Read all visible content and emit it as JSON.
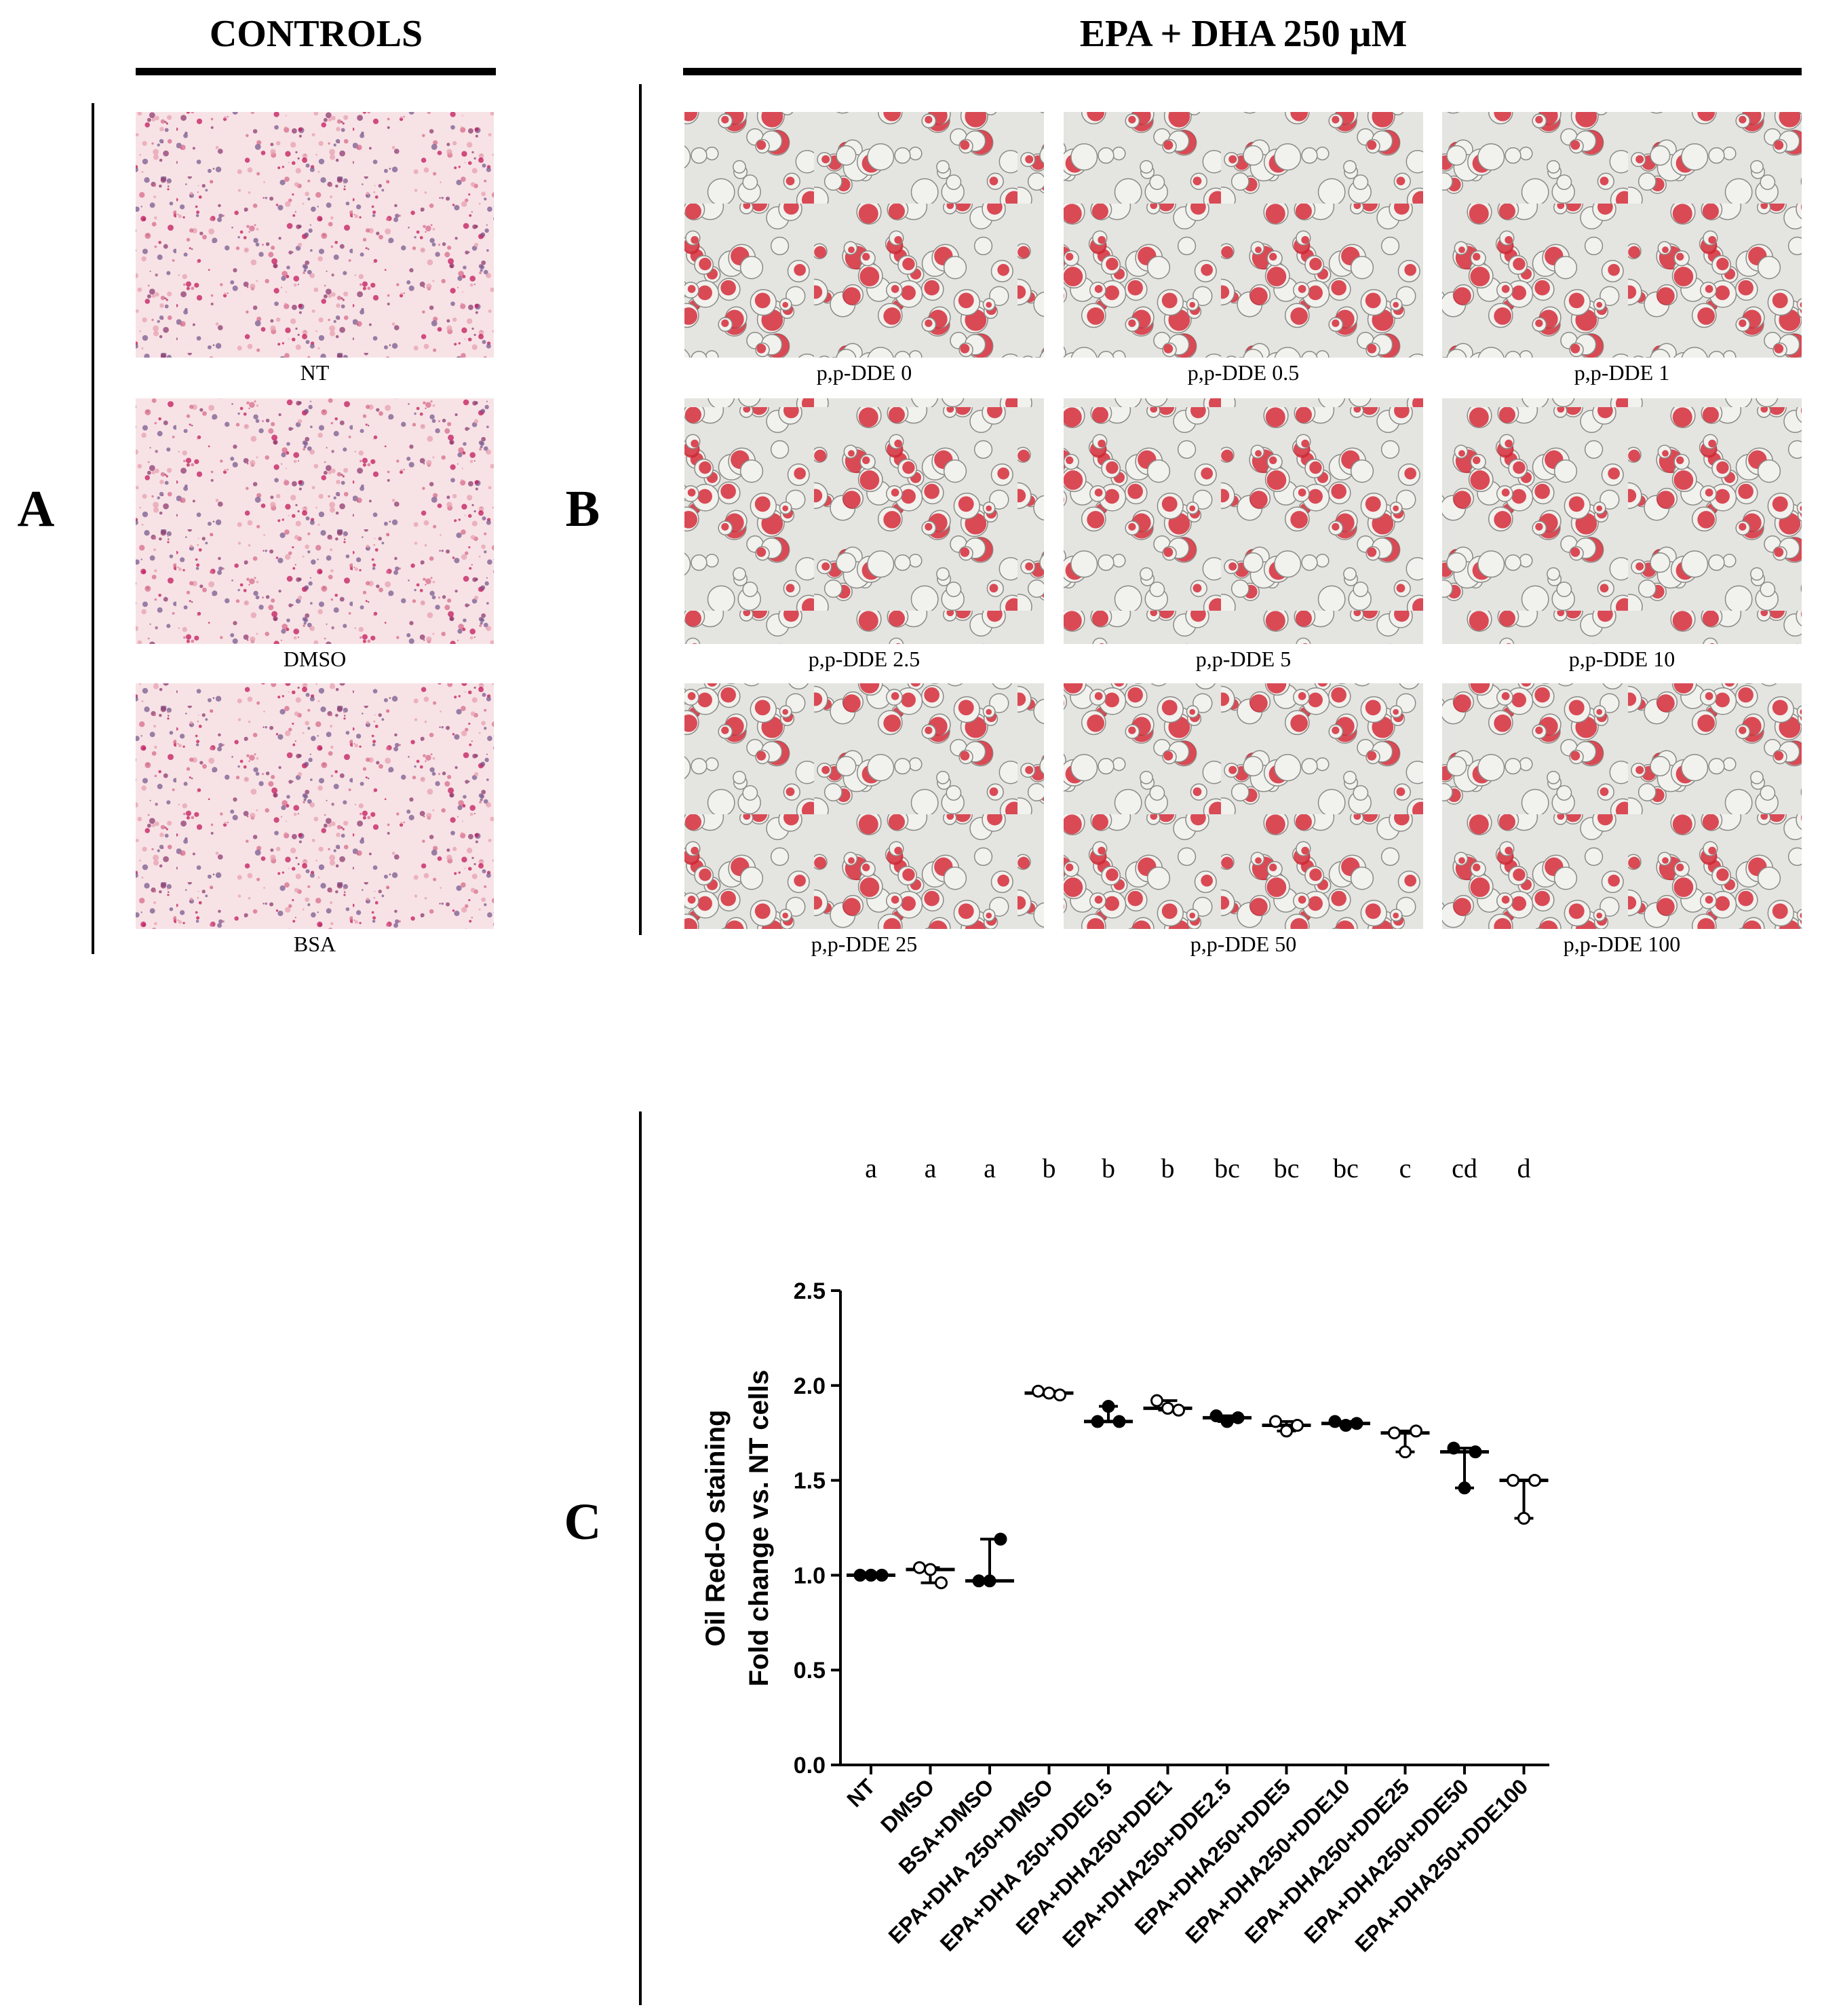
{
  "panel_a": {
    "label": "A",
    "title": "CONTROLS",
    "captions": [
      "NT",
      "DMSO",
      "BSA"
    ]
  },
  "panel_b": {
    "label": "B",
    "title": "EPA + DHA 250 μM",
    "captions": [
      "p,p-DDE 0",
      "p,p-DDE 0.5",
      "p,p-DDE 1",
      "p,p-DDE 2.5",
      "p,p-DDE 5",
      "p,p-DDE 10",
      "p,p-DDE 25",
      "p,p-DDE 50",
      "p,p-DDE 100"
    ]
  },
  "chart_data": {
    "type": "dotplot",
    "panel_label": "C",
    "ylabel": [
      "Oil Red-O staining",
      "Fold change vs. NT cells"
    ],
    "categories": [
      "NT",
      "DMSO",
      "BSA+DMSO",
      "EPA+DHA 250+DMSO",
      "EPA+DHA 250+DDE0.5",
      "EPA+DHA250+DDE1",
      "EPA+DHA250+DDE2.5",
      "EPA+DHA250+DDE5",
      "EPA+DHA250+DDE10",
      "EPA+DHA250+DDE25",
      "EPA+DHA250+DDE50",
      "EPA+DHA250+DDE100"
    ],
    "significance_letters": [
      "a",
      "a",
      "a",
      "b",
      "b",
      "b",
      "bc",
      "bc",
      "bc",
      "c",
      "cd",
      "d"
    ],
    "values": [
      [
        1.0,
        1.0,
        1.0
      ],
      [
        1.04,
        1.03,
        0.96
      ],
      [
        0.97,
        0.97,
        1.19
      ],
      [
        1.97,
        1.96,
        1.95
      ],
      [
        1.81,
        1.89,
        1.81
      ],
      [
        1.92,
        1.88,
        1.87
      ],
      [
        1.84,
        1.81,
        1.83
      ],
      [
        1.81,
        1.76,
        1.79
      ],
      [
        1.81,
        1.79,
        1.8
      ],
      [
        1.75,
        1.65,
        1.76
      ],
      [
        1.67,
        1.46,
        1.65
      ],
      [
        1.5,
        1.3,
        1.5
      ]
    ],
    "color": "#000000",
    "ylim": [
      0,
      2.5
    ],
    "yticks": [
      {
        "value": 0,
        "label": "0.0"
      },
      {
        "value": 0.5,
        "label": "0.5"
      },
      {
        "value": 1,
        "label": "1.0"
      },
      {
        "value": 1.5,
        "label": "1.5"
      },
      {
        "value": 2,
        "label": "2.0"
      },
      {
        "value": 2.5,
        "label": "2.5"
      }
    ]
  }
}
